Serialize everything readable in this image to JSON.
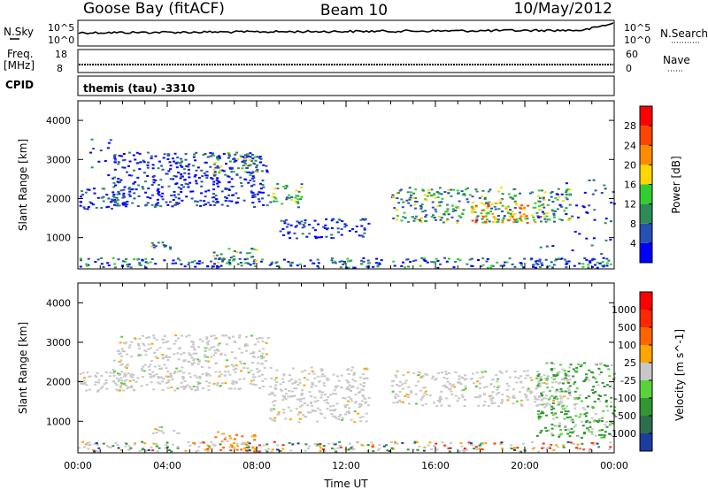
{
  "header": {
    "station": "Goose Bay (fitACF)",
    "beam": "Beam 10",
    "date": "10/May/2012"
  },
  "strip_labels": {
    "nsky": "N.Sky",
    "nsearch": "N.Search",
    "freq_line1": "Freq.",
    "freq_line2": "[MHz]",
    "nave": "Nave",
    "cpid": "CPID",
    "cpid_value": "themis (tau) -3310",
    "noise_tick_top": "10^5",
    "noise_tick_bottom": "10^0",
    "freq_tick_top": "18",
    "freq_tick_bottom": "8",
    "nave_tick_top": "60",
    "nave_tick_bottom": "0"
  },
  "chart_data": [
    {
      "type": "heatmap",
      "name": "power",
      "ylabel": "Slant Range [km]",
      "xlabel": "",
      "yticks": [
        1000,
        2000,
        3000,
        4000
      ],
      "ylim": [
        200,
        4500
      ],
      "xlim_hours": [
        0,
        24
      ],
      "colorbar": {
        "label": "Power [dB]",
        "ticks": [
          "4",
          "8",
          "12",
          "16",
          "20",
          "24",
          "28"
        ],
        "colors": [
          "#0000ff",
          "#2850b4",
          "#2e8b57",
          "#32cd32",
          "#ffd700",
          "#ff8c00",
          "#ff4500",
          "#ff0000"
        ]
      },
      "bands": [
        {
          "h": [
            0.0,
            2.5
          ],
          "r": [
            1750,
            2300
          ],
          "level": "low"
        },
        {
          "h": [
            0.5,
            1.5
          ],
          "r": [
            2100,
            3600
          ],
          "level": "sparse"
        },
        {
          "h": [
            1.5,
            8.5
          ],
          "r": [
            1800,
            3200
          ],
          "level": "low"
        },
        {
          "h": [
            6.0,
            8.0
          ],
          "r": [
            2600,
            3200
          ],
          "level": "mid"
        },
        {
          "h": [
            3.0,
            4.5
          ],
          "r": [
            700,
            900
          ],
          "level": "mid"
        },
        {
          "h": [
            0.0,
            24.0
          ],
          "r": [
            250,
            500
          ],
          "level": "mixed"
        },
        {
          "h": [
            6.0,
            8.0
          ],
          "r": [
            350,
            750
          ],
          "level": "mid"
        },
        {
          "h": [
            8.5,
            10.0
          ],
          "r": [
            1800,
            2400
          ],
          "level": "mid"
        },
        {
          "h": [
            9.0,
            13.0
          ],
          "r": [
            1000,
            1500
          ],
          "level": "low"
        },
        {
          "h": [
            14.0,
            22.0
          ],
          "r": [
            1400,
            2300
          ],
          "level": "mid"
        },
        {
          "h": [
            17.5,
            21.0
          ],
          "r": [
            1400,
            1900
          ],
          "level": "high"
        },
        {
          "h": [
            20.5,
            24.0
          ],
          "r": [
            600,
            2500
          ],
          "level": "sparse"
        }
      ]
    },
    {
      "type": "heatmap",
      "name": "velocity",
      "ylabel": "Slant Range [km]",
      "xlabel": "Time UT",
      "xticks": [
        "00:00",
        "04:00",
        "08:00",
        "12:00",
        "16:00",
        "20:00",
        "00:00"
      ],
      "yticks": [
        1000,
        2000,
        3000,
        4000
      ],
      "ylim": [
        200,
        4500
      ],
      "xlim_hours": [
        0,
        24
      ],
      "colorbar": {
        "label": "Velocity [m s^-1]",
        "ticks": [
          "1000",
          "500",
          "100",
          "25",
          "-25",
          "-100",
          "-500",
          "-1000"
        ],
        "colors": [
          "#1e3ca0",
          "#2e6e50",
          "#329632",
          "#5ad23c",
          "#c8c8c8",
          "#ffa500",
          "#ff6400",
          "#ff2800",
          "#ff0000"
        ]
      },
      "bands": [
        {
          "h": [
            0.0,
            2.5
          ],
          "r": [
            1750,
            2300
          ],
          "level": "gray"
        },
        {
          "h": [
            1.5,
            8.5
          ],
          "r": [
            1800,
            3200
          ],
          "level": "gray"
        },
        {
          "h": [
            3.0,
            4.5
          ],
          "r": [
            700,
            900
          ],
          "level": "gray"
        },
        {
          "h": [
            6.0,
            8.0
          ],
          "r": [
            250,
            750
          ],
          "level": "orange"
        },
        {
          "h": [
            0.0,
            24.0
          ],
          "r": [
            250,
            500
          ],
          "level": "mixed"
        },
        {
          "h": [
            8.5,
            13.0
          ],
          "r": [
            1000,
            2400
          ],
          "level": "gray"
        },
        {
          "h": [
            14.0,
            22.0
          ],
          "r": [
            1400,
            2300
          ],
          "level": "gray"
        },
        {
          "h": [
            20.5,
            24.0
          ],
          "r": [
            600,
            2500
          ],
          "level": "greenish"
        }
      ]
    }
  ]
}
